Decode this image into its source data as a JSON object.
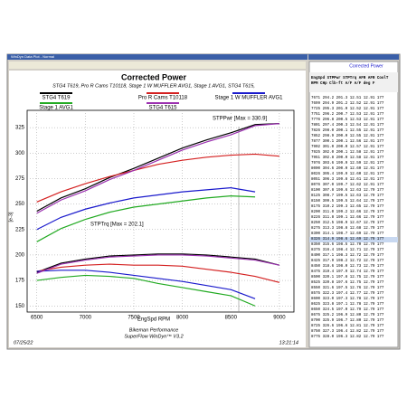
{
  "window": {
    "title": "WinDyn Data Plot - Normal"
  },
  "chart_data": {
    "type": "line",
    "title": "Corrected Power",
    "subtitle": "STG4 T619, Pro R Cams T10118, Stage 1 W MUFFLER AVG1, Stage 1 AVG1, STG4 T615,",
    "x_label": "EngSpd RPM",
    "y_label": "[e-3]",
    "annotations": [
      "STPPwr [Max = 330.9]",
      "STPTrq [Max = 202.1]"
    ],
    "x": [
      6500,
      6750,
      7000,
      7250,
      7500,
      7750,
      8000,
      8250,
      8500,
      8750,
      9000
    ],
    "series": [
      {
        "name": "STG4 T619",
        "color": "#000000",
        "values": [
          243,
          256,
          265,
          276,
          285,
          295,
          305,
          313,
          320,
          328,
          329
        ],
        "torque": [
          183,
          192,
          196,
          199,
          200,
          201,
          201,
          200,
          198,
          196,
          190
        ]
      },
      {
        "name": "Pro R Cams T10118",
        "color": "#d42020",
        "values": [
          252,
          262,
          270,
          277,
          283,
          289,
          293,
          296,
          298,
          299,
          297
        ],
        "torque": [
          184,
          188,
          190,
          191,
          190,
          190,
          189,
          186,
          183,
          179,
          173
        ]
      },
      {
        "name": "Stage 1 W MUFFLER AVG1",
        "color": "#1a1acc",
        "values": [
          225,
          237,
          245,
          251,
          256,
          259,
          262,
          264,
          266,
          262,
          null
        ],
        "torque": [
          184,
          185,
          185,
          183,
          180,
          177,
          174,
          170,
          166,
          157,
          null
        ]
      },
      {
        "name": "Stage 1 AVG1",
        "color": "#22aa22",
        "values": [
          213,
          226,
          235,
          242,
          247,
          250,
          253,
          256,
          258,
          257,
          null
        ],
        "torque": [
          175,
          178,
          180,
          179,
          177,
          172,
          168,
          164,
          160,
          150,
          null
        ]
      },
      {
        "name": "STG4 T615",
        "color": "#9b30b0",
        "values": [
          241,
          254,
          263,
          274,
          283,
          293,
          303,
          311,
          318,
          327,
          329
        ],
        "torque": [
          182,
          191,
          195,
          198,
          199,
          200,
          200,
          199,
          197,
          195,
          190
        ]
      }
    ],
    "xlim": [
      6400,
      9150
    ],
    "xticks": [
      6500,
      7000,
      7500,
      8000,
      8500,
      9000
    ],
    "ylim": [
      144,
      342
    ],
    "yticks": [
      150,
      175,
      200,
      225,
      250,
      275,
      300,
      325
    ],
    "grid": true,
    "footer": {
      "date": "07/25/22",
      "company": "Bikeman Performance",
      "software": "SuperFlow WinDyn™ V3.2",
      "time": "13:21:14"
    }
  },
  "table": {
    "title": "Corrected Power",
    "header": [
      "EngSpd STPPwr STPTrq AFR    AFR    CoolT",
      "RPM    CHp    Clb-ft A/F    A/F    deg F"
    ],
    "rows": [
      "7671   294.2  201.3  12.51  12.91  177",
      "7699   294.9  201.2  12.52  12.91  177",
      "7725   295.3  201.0  12.52  12.91  177",
      "7751   296.2  200.7  12.53  12.91  177",
      "7776   296.8  200.5  12.53  12.91  177",
      "7801   297.4  200.3  12.54  12.91  177",
      "7826   298.0  200.1  12.55  12.91  177",
      "7852   298.9  200.0  12.55  12.91  177",
      "7877   300.1  200.1  12.56  12.91  177",
      "7902   301.0  200.0  12.57  12.91  177",
      "7925   302.0  200.1  12.58  12.91  177",
      "7951   302.8  200.0  12.58  12.91  177",
      "7976   303.6  199.9  12.59  12.91  177",
      "8000   304.6  200.0  12.60  12.91  177",
      "8026   305.4  199.9  12.60  12.91  177",
      "8051   306.3  199.8  12.61  12.91  177",
      "8076   307.0  199.7  12.62  12.91  177",
      "8100   307.8  199.6  12.63  12.79  177",
      "8125   308.7  199.5  12.63  12.79  177",
      "8150   309.5  199.5  12.64  12.79  177",
      "8175   310.2  199.3  12.65  12.79  177",
      "8200   311.0  199.2  12.66  12.79  177",
      "8226   311.8  199.1  12.66  12.79  177",
      "8250   312.5  198.9  12.67  12.79  177",
      "8275   313.3  198.8  12.68  12.79  177",
      "8300   314.1  198.7  12.69  12.79  177",
      "8326   314.9  198.6  12.69  12.79  177",
      "8350   315.6  198.5  12.70  12.79  177",
      "8375   316.4  198.4  12.71  12.79  177",
      "8400   317.1  198.3  12.72  12.79  177",
      "8425   317.9  198.2  12.72  12.79  177",
      "8450   318.6  198.0  12.73  12.79  177",
      "8475   319.4  197.9  12.74  12.79  177",
      "8500   320.1  197.8  12.75  12.79  177",
      "8525   320.8  197.6  12.75  12.79  177",
      "8550   321.6  197.5  12.76  12.79  177",
      "8575   322.3  197.4  12.77  12.79  177",
      "8600   323.0  197.3  12.78  12.79  177",
      "8625   323.8  197.1  12.78  12.79  177",
      "8650   324.5  197.0  12.79  12.79  177",
      "8675   325.2  196.9  12.80  12.79  177",
      "8700   325.9  196.7  12.80  12.79  177",
      "8725   326.6  196.6  12.81  12.79  177",
      "8750   327.3  196.4  12.82  12.79  177",
      "8775   328.0  196.3  12.82  12.79  177"
    ]
  }
}
